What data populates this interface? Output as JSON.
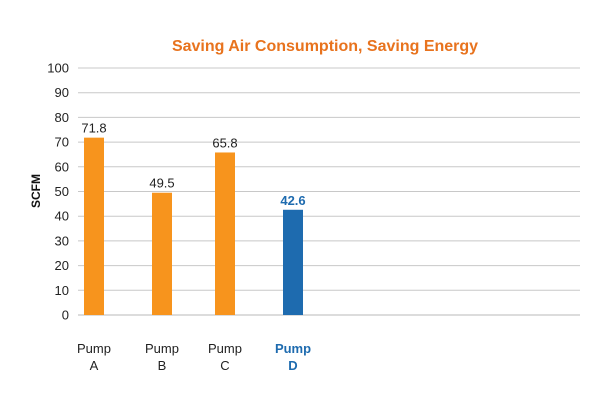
{
  "chart_data": {
    "type": "bar",
    "title": "Saving Air Consumption, Saving Energy",
    "ylabel": "SCFM",
    "xlabel": "",
    "ylim": [
      0,
      100
    ],
    "yticks": [
      0,
      10,
      20,
      30,
      40,
      50,
      60,
      70,
      80,
      90,
      100
    ],
    "grid": true,
    "legend": "none",
    "categories": [
      {
        "line1": "Pump",
        "line2": "A"
      },
      {
        "line1": "Pump",
        "line2": "B"
      },
      {
        "line1": "Pump",
        "line2": "C"
      },
      {
        "line1": "Pump",
        "line2": "D"
      }
    ],
    "values": [
      71.8,
      49.5,
      65.8,
      42.6
    ],
    "value_labels": [
      "71.8",
      "49.5",
      "65.8",
      "42.6"
    ],
    "bar_colors": [
      "#F7941D",
      "#F7941D",
      "#F7941D",
      "#1E6BAF"
    ],
    "highlight_index": 3,
    "colors": {
      "title": "#E8731E",
      "orange": "#F7941D",
      "blue": "#1E6BAF",
      "grid": "#C8C8C8",
      "text": "#222222"
    }
  }
}
